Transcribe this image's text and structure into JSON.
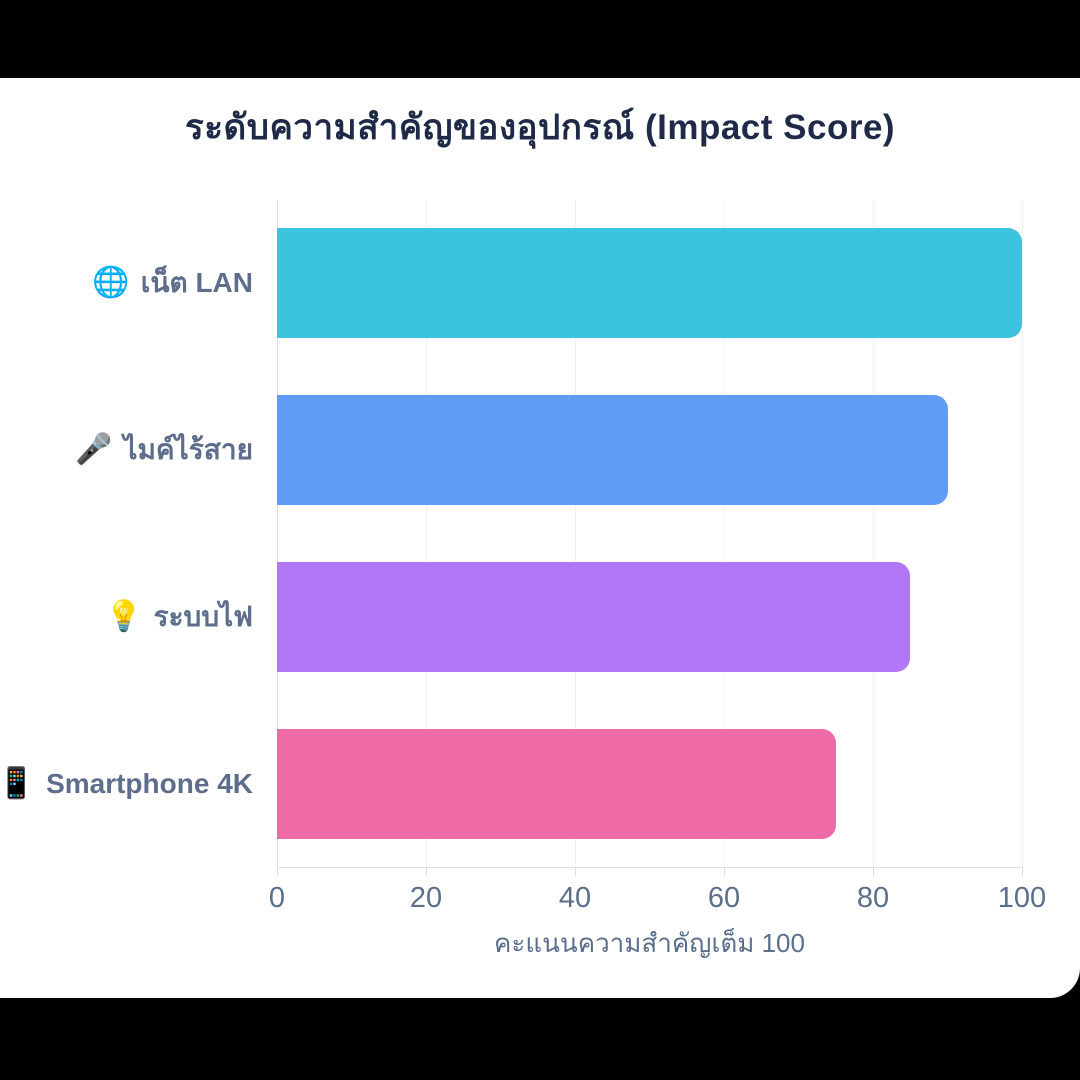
{
  "colors": {
    "page_bg": "#000000",
    "card_bg": "#ffffff",
    "title_color": "#1e2a47",
    "category_label_color": "#5d6d8b",
    "tick_label_color": "#5b6e8c",
    "axis_title_color": "#5b6e8c",
    "gridline_color": "#eef1f6",
    "axis_line_color": "#d9dfe8"
  },
  "chart_data": {
    "type": "bar",
    "orientation": "horizontal",
    "title": "ระดับความสำคัญของอุปกรณ์ (Impact Score)",
    "categories": [
      "🌐 เน็ต LAN",
      "🎤 ไมค์ไร้สาย",
      "💡 ระบบไฟ",
      "📱 Smartphone 4K"
    ],
    "labels_text": [
      "เน็ต LAN",
      "ไมค์ไร้สาย",
      "ระบบไฟ",
      "Smartphone 4K"
    ],
    "icons": [
      {
        "char": "🌐",
        "name": "globe-icon"
      },
      {
        "char": "🎤",
        "name": "microphone-icon"
      },
      {
        "char": "💡",
        "name": "light-bulb-icon"
      },
      {
        "char": "📱",
        "name": "smartphone-icon"
      }
    ],
    "values": [
      100,
      90,
      85,
      75
    ],
    "bar_colors": [
      "#3cc3de",
      "#609bf5",
      "#b177f6",
      "#ee6ba7"
    ],
    "xlabel": "คะแนนความสำคัญเต็ม 100",
    "ylabel": "",
    "x_ticks": [
      0,
      20,
      40,
      60,
      80,
      100
    ],
    "xlim": [
      0,
      100
    ],
    "grid": true,
    "legend": false
  }
}
